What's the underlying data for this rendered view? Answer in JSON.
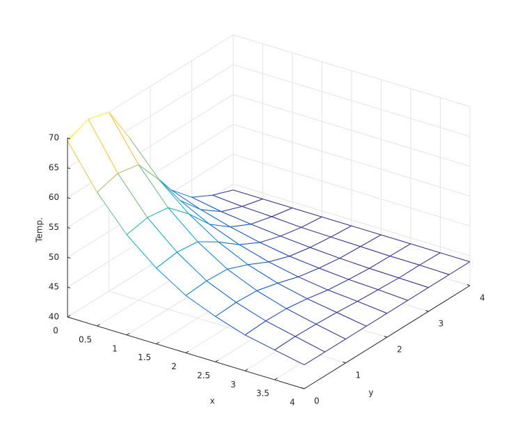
{
  "chart_data": {
    "type": "mesh",
    "x": [
      0,
      0.5,
      1,
      1.5,
      2,
      2.5,
      3,
      3.5,
      4
    ],
    "y": [
      0,
      0.5,
      1,
      1.5,
      2,
      2.5,
      3,
      3.5,
      4
    ],
    "z": [
      [
        69.5,
        62.4,
        56.8,
        52.7,
        49.6,
        47.6,
        46.0,
        45.0,
        44.0
      ],
      [
        71.0,
        63.4,
        57.5,
        53.2,
        49.9,
        47.8,
        46.2,
        45.1,
        44.0
      ],
      [
        70.0,
        62.7,
        57.0,
        52.8,
        49.7,
        47.6,
        46.1,
        45.0,
        44.0
      ],
      [
        63.5,
        58.0,
        53.8,
        50.6,
        48.3,
        46.7,
        45.6,
        44.8,
        44.0
      ],
      [
        55.7,
        52.4,
        49.9,
        48.0,
        46.6,
        45.6,
        44.9,
        44.5,
        44.0
      ],
      [
        50.5,
        48.7,
        47.3,
        46.2,
        45.4,
        44.9,
        44.5,
        44.3,
        44.0
      ],
      [
        47.1,
        46.2,
        45.6,
        45.1,
        44.7,
        44.4,
        44.2,
        44.1,
        44.0
      ],
      [
        45.3,
        44.9,
        44.7,
        44.4,
        44.3,
        44.2,
        44.1,
        44.1,
        44.0
      ],
      [
        44.0,
        44.0,
        44.0,
        44.0,
        44.0,
        44.0,
        44.0,
        44.0,
        44.0
      ]
    ],
    "xlabel": "x",
    "ylabel": "y",
    "zlabel": "Temp.",
    "xlim": [
      0,
      4
    ],
    "ylim": [
      0,
      4
    ],
    "zlim": [
      40,
      70
    ],
    "xticks": [
      0,
      0.5,
      1,
      1.5,
      2,
      2.5,
      3,
      3.5,
      4
    ],
    "yticks": [
      0,
      1,
      2,
      3,
      4
    ],
    "zticks": [
      40,
      45,
      50,
      55,
      60,
      65,
      70
    ],
    "grid": true,
    "colormap": [
      "#352a87",
      "#0f5cdd",
      "#1481d6",
      "#06a4ca",
      "#2eb7a4",
      "#87bf77",
      "#d1bb59",
      "#fec832",
      "#f9fb0e"
    ]
  }
}
